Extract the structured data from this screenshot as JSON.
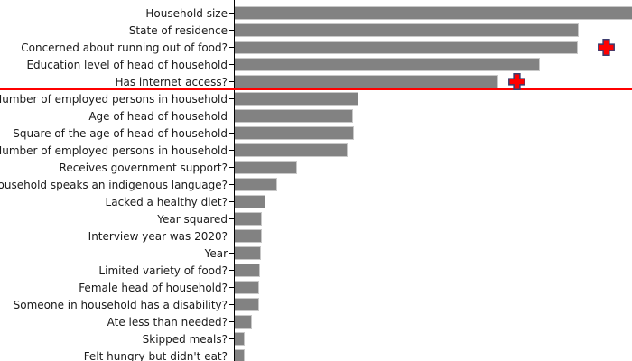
{
  "chart": {
    "background_color": "#ffffff",
    "bar_color": "#828282",
    "bar_edge_color": "#c8c8c8",
    "axis_color": "#000000",
    "threshold_line_color": "#ff0000",
    "marker_fill_color": "#ff0000",
    "marker_edge_color": "#3c3c6e",
    "label_color": "#1a1a1a"
  },
  "chart_data": {
    "type": "bar",
    "orientation": "horizontal",
    "title": "",
    "xlabel": "",
    "ylabel": "",
    "legend": null,
    "grid": false,
    "value_units": "pixel length from axis (numeric x-axis scale not visible; chart cropped top/bottom/right)",
    "categories": [
      "Household size",
      "State of residence",
      "Concerned about running out of food?",
      "Education level of head of household",
      "Has internet access?",
      "Number of employed persons in household",
      "Age of head of household",
      "Square of the age of head of household",
      "Number of employed persons in household",
      "Receives government support?",
      "Household speaks an indigenous language?",
      "Lacked a healthy diet?",
      "Year squared",
      "Interview year was 2020?",
      "Year",
      "Limited variety of food?",
      "Female head of household?",
      "Someone in household has a disability?",
      "Ate less than needed?",
      "Skipped meals?",
      "Felt hungry but didn't eat?"
    ],
    "values": [
      446,
      382,
      381,
      339,
      293,
      138,
      132,
      133,
      126,
      70,
      48,
      35,
      31,
      31,
      30,
      29,
      28,
      28,
      20,
      12,
      12
    ],
    "first_bar_clipped_at_right_edge": true,
    "last_bar_clipped_at_bottom_edge": true,
    "markers": [
      {
        "category_index": 2,
        "value": 413,
        "shape": "filled-plus"
      },
      {
        "category_index": 4,
        "value": 314,
        "shape": "filled-plus"
      }
    ],
    "threshold_line": {
      "orientation": "horizontal",
      "after_category_index": 4,
      "color": "#ff0000"
    }
  }
}
